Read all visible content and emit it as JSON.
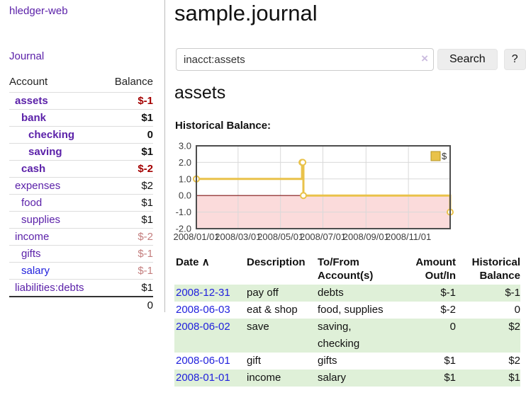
{
  "colors": {
    "accent_purple": "#5b21a9",
    "link_blue": "#2121dd",
    "negative_red": "#a40000",
    "negative_dim": "#c47e7e",
    "row_stripe_green": "#dff0d8",
    "button_gray": "#ededed"
  },
  "sidebar": {
    "app_title": "hledger-web",
    "journal_label": "Journal",
    "accounts_header": {
      "account": "Account",
      "balance": "Balance"
    },
    "accounts": [
      {
        "name": "assets",
        "level": 1,
        "bold": true,
        "blue": false,
        "balance": "$-1",
        "balance_style": "strong-neg"
      },
      {
        "name": "bank",
        "level": 2,
        "bold": true,
        "blue": false,
        "balance": "$1",
        "balance_style": "strong"
      },
      {
        "name": "checking",
        "level": 3,
        "bold": true,
        "blue": false,
        "balance": "0",
        "balance_style": "strong"
      },
      {
        "name": "saving",
        "level": 3,
        "bold": true,
        "blue": false,
        "balance": "$1",
        "balance_style": "strong"
      },
      {
        "name": "cash",
        "level": 2,
        "bold": true,
        "blue": false,
        "balance": "$-2",
        "balance_style": "strong-neg"
      },
      {
        "name": "expenses",
        "level": 1,
        "bold": false,
        "blue": false,
        "balance": "$2",
        "balance_style": "plain"
      },
      {
        "name": "food",
        "level": 2,
        "bold": false,
        "blue": false,
        "balance": "$1",
        "balance_style": "plain"
      },
      {
        "name": "supplies",
        "level": 2,
        "bold": false,
        "blue": false,
        "balance": "$1",
        "balance_style": "plain"
      },
      {
        "name": "income",
        "level": 1,
        "bold": false,
        "blue": false,
        "balance": "$-2",
        "balance_style": "dim-neg"
      },
      {
        "name": "gifts",
        "level": 2,
        "bold": false,
        "blue": false,
        "balance": "$-1",
        "balance_style": "dim-neg"
      },
      {
        "name": "salary",
        "level": 2,
        "bold": false,
        "blue": true,
        "balance": "$-1",
        "balance_style": "dim-neg"
      },
      {
        "name": "liabilities:debts",
        "level": 1,
        "bold": false,
        "blue": false,
        "balance": "$1",
        "balance_style": "plain"
      }
    ],
    "total_balance": "0"
  },
  "main": {
    "title": "sample.journal",
    "search": {
      "value": "inacct:assets",
      "clear_icon": "×",
      "button_label": "Search",
      "help_label": "?"
    },
    "account_heading": "assets",
    "register": {
      "headers": {
        "date": "Date",
        "sort_icon": "∧",
        "description": "Description",
        "accounts": "To/From Account(s)",
        "amount": "Amount Out/In",
        "balance": "Historical Balance"
      },
      "rows": [
        {
          "date": "2008-12-31",
          "description": "pay off",
          "accounts": "debts",
          "amount": "$-1",
          "amount_negative": true,
          "balance": "$-1",
          "balance_negative": true
        },
        {
          "date": "2008-06-03",
          "description": "eat & shop",
          "accounts": "food, supplies",
          "amount": "$-2",
          "amount_negative": true,
          "balance": "0",
          "balance_negative": false
        },
        {
          "date": "2008-06-02",
          "description": "save",
          "accounts": "saving,\nchecking",
          "amount": "0",
          "amount_negative": false,
          "balance": "$2",
          "balance_negative": false
        },
        {
          "date": "2008-06-01",
          "description": "gift",
          "accounts": "gifts",
          "amount": "$1",
          "amount_negative": false,
          "balance": "$2",
          "balance_negative": false
        },
        {
          "date": "2008-01-01",
          "description": "income",
          "accounts": "salary",
          "amount": "$1",
          "amount_negative": false,
          "balance": "$1",
          "balance_negative": false
        }
      ]
    }
  },
  "chart_data": {
    "type": "line",
    "title": "Historical Balance:",
    "step": true,
    "x_range": [
      "2008-01-01",
      "2008-12-31"
    ],
    "ylim": [
      -2,
      3
    ],
    "y_ticks": [
      "3.0",
      "2.0",
      "1.0",
      "0.0",
      "-1.0",
      "-2.0"
    ],
    "x_ticks": [
      "2008/01/01",
      "2008/03/01",
      "2008/05/01",
      "2008/07/01",
      "2008/09/01",
      "2008/11/01"
    ],
    "series": [
      {
        "name": "$",
        "color": "#e9c24a",
        "points": [
          [
            "2008-01-01",
            1
          ],
          [
            "2008-06-01",
            2
          ],
          [
            "2008-06-02",
            2
          ],
          [
            "2008-06-03",
            0
          ],
          [
            "2008-12-31",
            -1
          ]
        ]
      }
    ],
    "legend_position": "top-right",
    "grid": true,
    "grid_color": "#d9d9d9",
    "border_color": "#4d4d4d",
    "zero_line_color": "#801515",
    "negative_fill": "#fbdbdb",
    "tick_label_color": "#3c3c3c"
  }
}
